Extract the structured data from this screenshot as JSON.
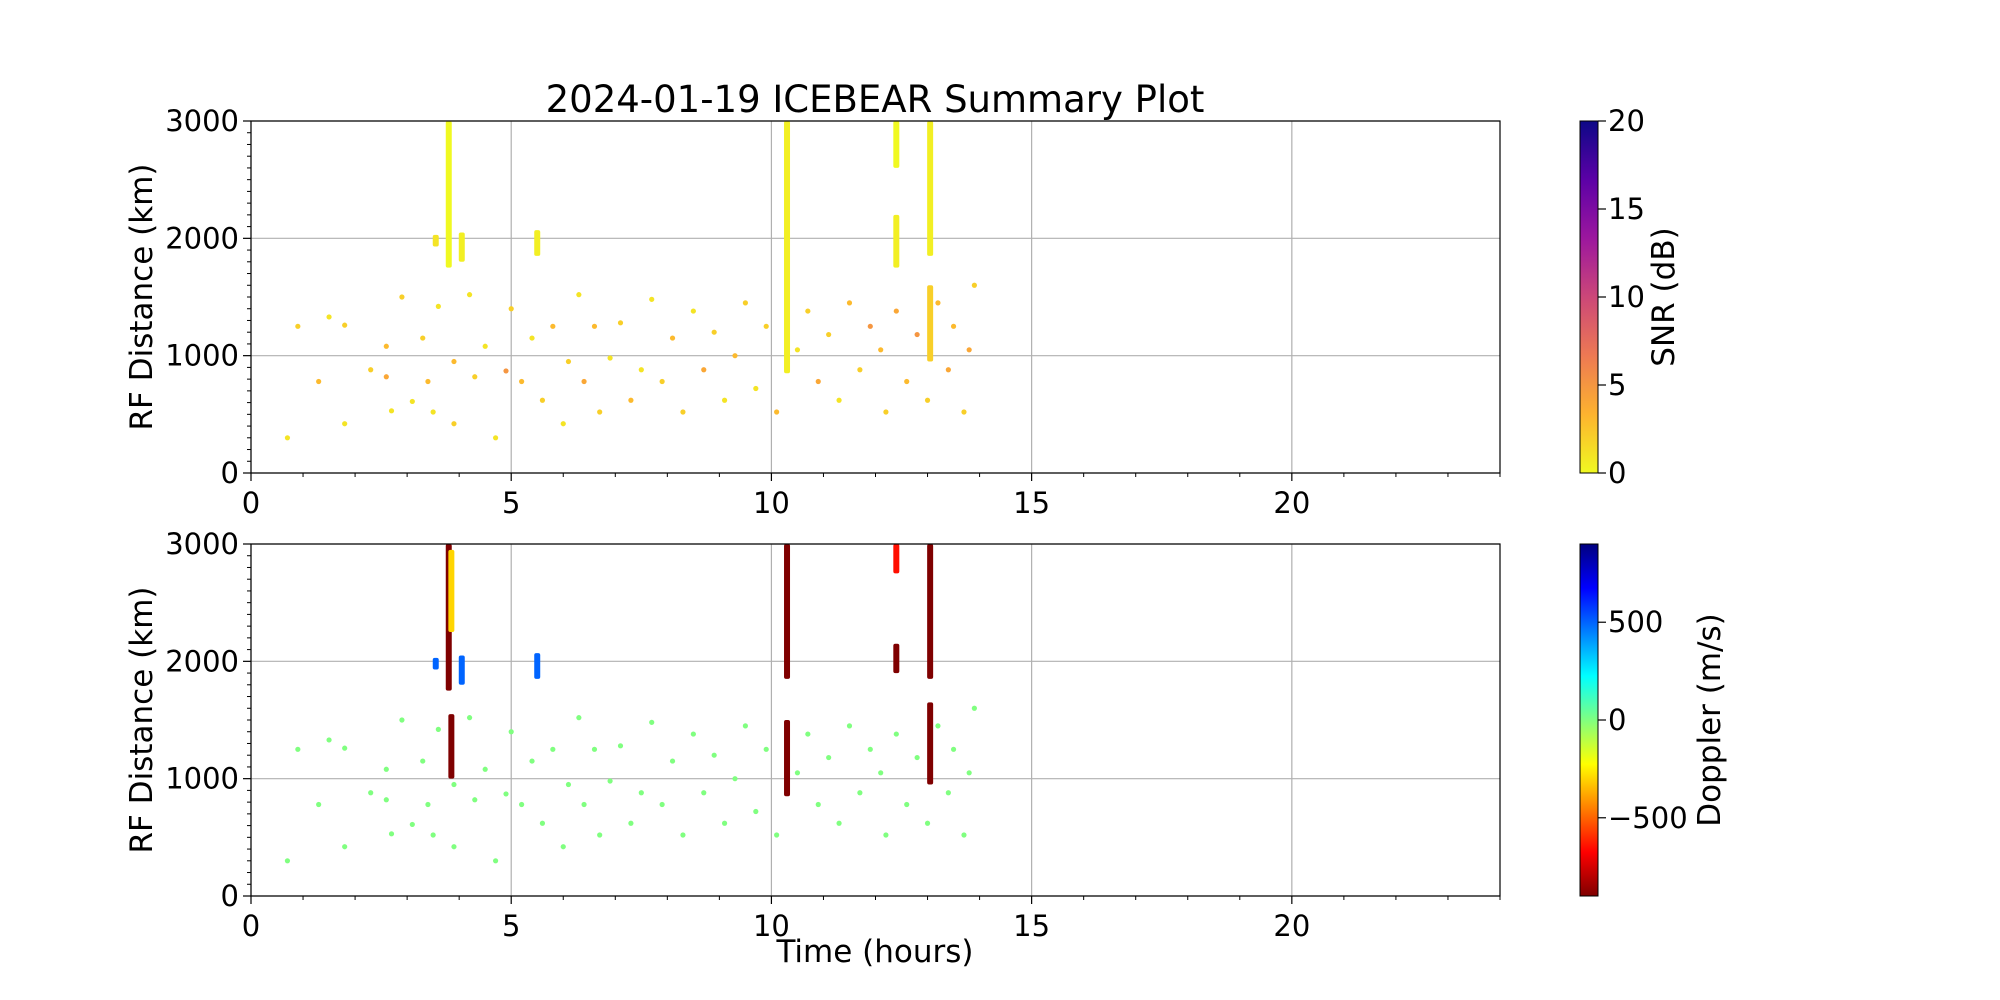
{
  "figure": {
    "title": "2024-01-19 ICEBEAR Summary Plot"
  },
  "chart_data": [
    {
      "type": "scatter",
      "panel": "top",
      "ylabel": "RF Distance (km)",
      "xlabel": "",
      "xlim": [
        0,
        24
      ],
      "ylim": [
        0,
        3000
      ],
      "x_ticks": [
        0,
        5,
        10,
        15,
        20
      ],
      "y_ticks": [
        0,
        1000,
        2000,
        3000
      ],
      "grid": true,
      "color_variable": "SNR",
      "colorbar": {
        "label": "SNR (dB)",
        "range": [
          0,
          20
        ],
        "ticks": [
          0,
          5,
          10,
          15,
          20
        ],
        "colormap": "plasma_r",
        "colors": [
          "#f0f921",
          "#fdb32f",
          "#ed7953",
          "#cc4778",
          "#9c179e",
          "#5c01a6",
          "#0d0887"
        ]
      },
      "series": [
        {
          "kind": "vertical_streaks",
          "points": [
            [
              3.8,
              1750,
              3000,
              0
            ],
            [
              4.05,
              1800,
              2050,
              0.5
            ],
            [
              5.5,
              1850,
              2070,
              0.5
            ],
            [
              3.55,
              1930,
              2030,
              1
            ],
            [
              10.3,
              850,
              3000,
              0.5
            ],
            [
              12.4,
              1750,
              2200,
              0.5
            ],
            [
              12.4,
              2600,
              3000,
              0
            ],
            [
              13.05,
              1850,
              3000,
              0.5
            ],
            [
              13.05,
              950,
              1600,
              2
            ]
          ]
        },
        {
          "kind": "scattered_points",
          "points": [
            [
              0.7,
              300,
              1
            ],
            [
              0.9,
              1250,
              2
            ],
            [
              1.3,
              780,
              3
            ],
            [
              1.5,
              1330,
              1
            ],
            [
              1.8,
              420,
              1
            ],
            [
              1.8,
              1260,
              2
            ],
            [
              2.3,
              880,
              2
            ],
            [
              2.6,
              820,
              4
            ],
            [
              2.6,
              1080,
              3
            ],
            [
              2.7,
              530,
              1
            ],
            [
              2.9,
              1500,
              2
            ],
            [
              3.1,
              610,
              1
            ],
            [
              3.3,
              1150,
              2
            ],
            [
              3.4,
              780,
              3
            ],
            [
              3.5,
              520,
              1
            ],
            [
              3.6,
              1420,
              1
            ],
            [
              3.9,
              420,
              2
            ],
            [
              3.9,
              950,
              3
            ],
            [
              4.2,
              1520,
              1
            ],
            [
              4.3,
              820,
              2
            ],
            [
              4.5,
              1080,
              1
            ],
            [
              4.7,
              300,
              1
            ],
            [
              4.9,
              870,
              5
            ],
            [
              5.0,
              1400,
              2
            ],
            [
              5.2,
              780,
              3
            ],
            [
              5.4,
              1150,
              1
            ],
            [
              5.6,
              620,
              2
            ],
            [
              5.8,
              1250,
              3
            ],
            [
              6.0,
              420,
              1
            ],
            [
              6.1,
              950,
              2
            ],
            [
              6.3,
              1520,
              1
            ],
            [
              6.4,
              780,
              4
            ],
            [
              6.6,
              1250,
              3
            ],
            [
              6.7,
              520,
              2
            ],
            [
              6.9,
              980,
              1
            ],
            [
              7.1,
              1280,
              2
            ],
            [
              7.3,
              620,
              3
            ],
            [
              7.5,
              880,
              1
            ],
            [
              7.7,
              1480,
              1
            ],
            [
              7.9,
              780,
              2
            ],
            [
              8.1,
              1150,
              3
            ],
            [
              8.3,
              520,
              2
            ],
            [
              8.5,
              1380,
              1
            ],
            [
              8.7,
              880,
              4
            ],
            [
              8.9,
              1200,
              2
            ],
            [
              9.1,
              620,
              1
            ],
            [
              9.3,
              1000,
              3
            ],
            [
              9.5,
              1450,
              2
            ],
            [
              9.7,
              720,
              1
            ],
            [
              9.9,
              1250,
              2
            ],
            [
              10.1,
              520,
              3
            ],
            [
              10.5,
              1050,
              1
            ],
            [
              10.7,
              1380,
              2
            ],
            [
              10.9,
              780,
              4
            ],
            [
              11.1,
              1180,
              2
            ],
            [
              11.3,
              620,
              1
            ],
            [
              11.5,
              1450,
              3
            ],
            [
              11.7,
              880,
              2
            ],
            [
              11.9,
              1250,
              5
            ],
            [
              12.1,
              1050,
              3
            ],
            [
              12.2,
              520,
              2
            ],
            [
              12.4,
              1380,
              4
            ],
            [
              12.6,
              780,
              3
            ],
            [
              12.8,
              1180,
              5
            ],
            [
              13.0,
              620,
              2
            ],
            [
              13.2,
              1450,
              3
            ],
            [
              13.4,
              880,
              4
            ],
            [
              13.5,
              1250,
              3
            ],
            [
              13.7,
              520,
              2
            ],
            [
              13.8,
              1050,
              4
            ],
            [
              13.9,
              1600,
              2
            ]
          ]
        }
      ]
    },
    {
      "type": "scatter",
      "panel": "bottom",
      "ylabel": "RF Distance (km)",
      "xlabel": "Time (hours)",
      "xlim": [
        0,
        24
      ],
      "ylim": [
        0,
        3000
      ],
      "x_ticks": [
        0,
        5,
        10,
        15,
        20
      ],
      "y_ticks": [
        0,
        1000,
        2000,
        3000
      ],
      "grid": true,
      "color_variable": "Doppler",
      "colorbar": {
        "label": "Doppler (m/s)",
        "range": [
          -900,
          900
        ],
        "ticks": [
          -500,
          0,
          500
        ],
        "tick_labels": [
          "−500",
          "0",
          "500"
        ],
        "colormap": "jet_r",
        "colors": [
          "#7f0000",
          "#ff0000",
          "#ff8000",
          "#ffff00",
          "#80ff80",
          "#00ffff",
          "#0080ff",
          "#0000ff",
          "#00007f"
        ]
      },
      "series": [
        {
          "kind": "vertical_streaks",
          "points": [
            [
              3.8,
              1750,
              3000,
              -900
            ],
            [
              3.85,
              2250,
              2950,
              -300
            ],
            [
              3.85,
              1000,
              1550,
              -900
            ],
            [
              4.05,
              1800,
              2050,
              500
            ],
            [
              3.55,
              1930,
              2030,
              500
            ],
            [
              5.5,
              1850,
              2070,
              500
            ],
            [
              10.3,
              1850,
              3000,
              -900
            ],
            [
              10.3,
              850,
              1500,
              -900
            ],
            [
              12.4,
              2750,
              3000,
              -650
            ],
            [
              12.4,
              1900,
              2150,
              -900
            ],
            [
              13.05,
              1850,
              3000,
              -900
            ],
            [
              13.05,
              950,
              1650,
              -900
            ]
          ]
        },
        {
          "kind": "scattered_points",
          "points": [
            [
              0.7,
              300,
              0
            ],
            [
              0.9,
              1250,
              0
            ],
            [
              1.3,
              780,
              0
            ],
            [
              1.5,
              1330,
              0
            ],
            [
              1.8,
              420,
              0
            ],
            [
              1.8,
              1260,
              0
            ],
            [
              2.3,
              880,
              0
            ],
            [
              2.6,
              820,
              0
            ],
            [
              2.6,
              1080,
              0
            ],
            [
              2.7,
              530,
              0
            ],
            [
              2.9,
              1500,
              0
            ],
            [
              3.1,
              610,
              0
            ],
            [
              3.3,
              1150,
              0
            ],
            [
              3.4,
              780,
              0
            ],
            [
              3.5,
              520,
              0
            ],
            [
              3.6,
              1420,
              0
            ],
            [
              3.9,
              420,
              0
            ],
            [
              3.9,
              950,
              0
            ],
            [
              4.2,
              1520,
              0
            ],
            [
              4.3,
              820,
              0
            ],
            [
              4.5,
              1080,
              0
            ],
            [
              4.7,
              300,
              0
            ],
            [
              4.9,
              870,
              0
            ],
            [
              5.0,
              1400,
              0
            ],
            [
              5.2,
              780,
              0
            ],
            [
              5.4,
              1150,
              0
            ],
            [
              5.6,
              620,
              0
            ],
            [
              5.8,
              1250,
              0
            ],
            [
              6.0,
              420,
              0
            ],
            [
              6.1,
              950,
              0
            ],
            [
              6.3,
              1520,
              0
            ],
            [
              6.4,
              780,
              0
            ],
            [
              6.6,
              1250,
              0
            ],
            [
              6.7,
              520,
              0
            ],
            [
              6.9,
              980,
              0
            ],
            [
              7.1,
              1280,
              0
            ],
            [
              7.3,
              620,
              0
            ],
            [
              7.5,
              880,
              0
            ],
            [
              7.7,
              1480,
              0
            ],
            [
              7.9,
              780,
              0
            ],
            [
              8.1,
              1150,
              0
            ],
            [
              8.3,
              520,
              0
            ],
            [
              8.5,
              1380,
              0
            ],
            [
              8.7,
              880,
              0
            ],
            [
              8.9,
              1200,
              0
            ],
            [
              9.1,
              620,
              0
            ],
            [
              9.3,
              1000,
              0
            ],
            [
              9.5,
              1450,
              0
            ],
            [
              9.7,
              720,
              0
            ],
            [
              9.9,
              1250,
              0
            ],
            [
              10.1,
              520,
              0
            ],
            [
              10.5,
              1050,
              0
            ],
            [
              10.7,
              1380,
              0
            ],
            [
              10.9,
              780,
              0
            ],
            [
              11.1,
              1180,
              0
            ],
            [
              11.3,
              620,
              0
            ],
            [
              11.5,
              1450,
              0
            ],
            [
              11.7,
              880,
              0
            ],
            [
              11.9,
              1250,
              0
            ],
            [
              12.1,
              1050,
              0
            ],
            [
              12.2,
              520,
              0
            ],
            [
              12.4,
              1380,
              0
            ],
            [
              12.6,
              780,
              0
            ],
            [
              12.8,
              1180,
              0
            ],
            [
              13.0,
              620,
              0
            ],
            [
              13.2,
              1450,
              0
            ],
            [
              13.4,
              880,
              0
            ],
            [
              13.5,
              1250,
              0
            ],
            [
              13.7,
              520,
              0
            ],
            [
              13.8,
              1050,
              0
            ],
            [
              13.9,
              1600,
              0
            ]
          ]
        }
      ]
    }
  ]
}
